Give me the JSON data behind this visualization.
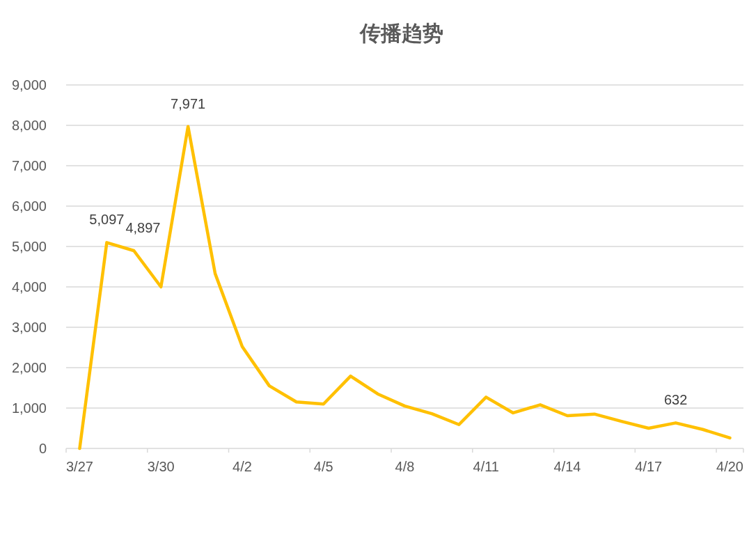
{
  "chart_data": {
    "type": "line",
    "title": "传播趋势",
    "categories": [
      "3/27",
      null,
      null,
      "3/30",
      null,
      null,
      "4/2",
      null,
      null,
      "4/5",
      null,
      null,
      "4/8",
      null,
      null,
      "4/11",
      null,
      null,
      "4/14",
      null,
      null,
      "4/17",
      null,
      null,
      "4/20"
    ],
    "values": [
      0,
      5097,
      4897,
      4000,
      7971,
      4330,
      2520,
      1550,
      1150,
      1100,
      1790,
      1350,
      1050,
      860,
      590,
      1270,
      880,
      1080,
      810,
      850,
      670,
      500,
      632,
      470,
      260
    ],
    "value_labels": [
      null,
      "5,097",
      "4,897",
      null,
      "7,971",
      null,
      null,
      null,
      null,
      null,
      null,
      null,
      null,
      null,
      null,
      null,
      null,
      null,
      null,
      null,
      null,
      null,
      "632",
      null,
      null
    ],
    "color": "#ffc000",
    "ylim": [
      0,
      9000
    ],
    "yticks": [
      0,
      {
        "value": 1000,
        "label": "1,000"
      },
      {
        "value": 2000,
        "label": "2,000"
      },
      {
        "value": 3000,
        "label": "3,000"
      },
      {
        "value": 4000,
        "label": "4,000"
      },
      {
        "value": 5000,
        "label": "5,000"
      },
      {
        "value": 6000,
        "label": "6,000"
      },
      {
        "value": 7000,
        "label": "7,000"
      },
      {
        "value": 8000,
        "label": "8,000"
      },
      {
        "value": 9000,
        "label": "9,000"
      }
    ],
    "grid": "y"
  }
}
